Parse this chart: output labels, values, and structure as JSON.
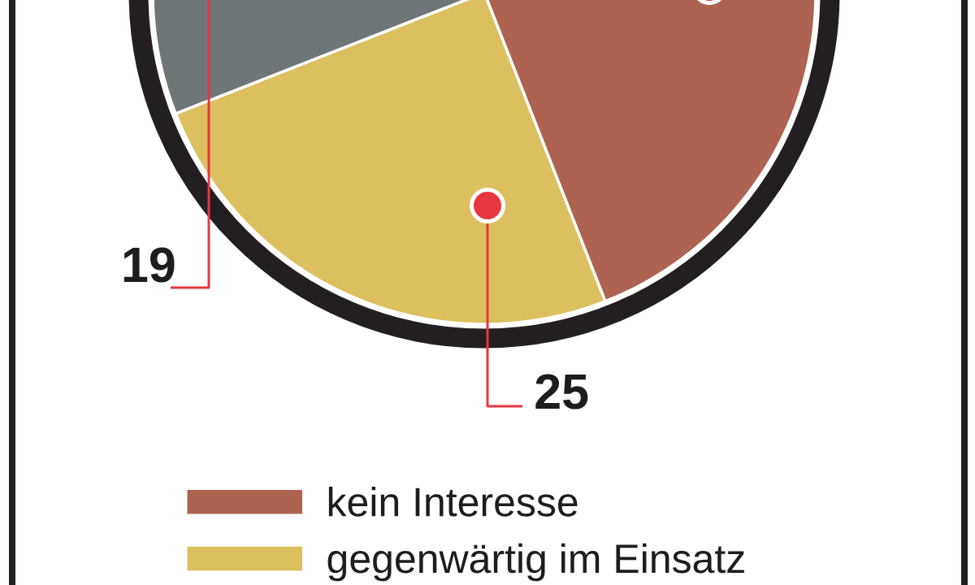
{
  "chart_data": {
    "type": "pie",
    "categories": [
      "kein Interesse",
      "gegenwärtig im Einsatz",
      null
    ],
    "values": [
      56,
      25,
      19
    ],
    "colors": [
      "#ad6350",
      "#dcbf5e",
      "#6f7677"
    ],
    "value_labels": [
      null,
      "25",
      "19"
    ],
    "legend": "bottom"
  }
}
